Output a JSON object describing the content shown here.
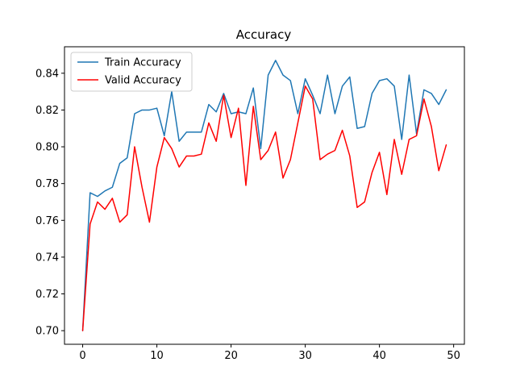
{
  "chart_data": {
    "type": "line",
    "title": "Accuracy",
    "xlabel": "",
    "ylabel": "",
    "xlim": [
      -2.45,
      51.45
    ],
    "ylim": [
      0.6926,
      0.8544
    ],
    "x_ticks": [
      0,
      10,
      20,
      30,
      40,
      50
    ],
    "y_ticks": [
      0.7,
      0.72,
      0.74,
      0.76,
      0.78,
      0.8,
      0.82,
      0.84
    ],
    "grid": false,
    "legend": "top-left",
    "x": [
      0,
      1,
      2,
      3,
      4,
      5,
      6,
      7,
      8,
      9,
      10,
      11,
      12,
      13,
      14,
      15,
      16,
      17,
      18,
      19,
      20,
      21,
      22,
      23,
      24,
      25,
      26,
      27,
      28,
      29,
      30,
      31,
      32,
      33,
      34,
      35,
      36,
      37,
      38,
      39,
      40,
      41,
      42,
      43,
      44,
      45,
      46,
      47,
      48,
      49
    ],
    "series": [
      {
        "name": "Train Accuracy",
        "color": "#1f77b4",
        "values": [
          0.7,
          0.775,
          0.773,
          0.776,
          0.778,
          0.791,
          0.794,
          0.818,
          0.82,
          0.82,
          0.821,
          0.806,
          0.83,
          0.803,
          0.808,
          0.808,
          0.808,
          0.823,
          0.819,
          0.829,
          0.818,
          0.819,
          0.818,
          0.832,
          0.799,
          0.839,
          0.847,
          0.839,
          0.836,
          0.818,
          0.837,
          0.828,
          0.818,
          0.839,
          0.818,
          0.833,
          0.838,
          0.81,
          0.811,
          0.829,
          0.836,
          0.837,
          0.833,
          0.804,
          0.839,
          0.807,
          0.831,
          0.829,
          0.823,
          0.831
        ]
      },
      {
        "name": "Valid Accuracy",
        "color": "#ff0000",
        "values": [
          0.7,
          0.758,
          0.77,
          0.766,
          0.772,
          0.759,
          0.763,
          0.8,
          0.778,
          0.759,
          0.789,
          0.805,
          0.799,
          0.789,
          0.795,
          0.795,
          0.796,
          0.813,
          0.803,
          0.828,
          0.805,
          0.821,
          0.779,
          0.822,
          0.793,
          0.798,
          0.808,
          0.783,
          0.793,
          0.813,
          0.833,
          0.826,
          0.793,
          0.796,
          0.798,
          0.809,
          0.795,
          0.767,
          0.77,
          0.786,
          0.797,
          0.774,
          0.804,
          0.785,
          0.804,
          0.806,
          0.826,
          0.811,
          0.787,
          0.801
        ]
      }
    ]
  }
}
